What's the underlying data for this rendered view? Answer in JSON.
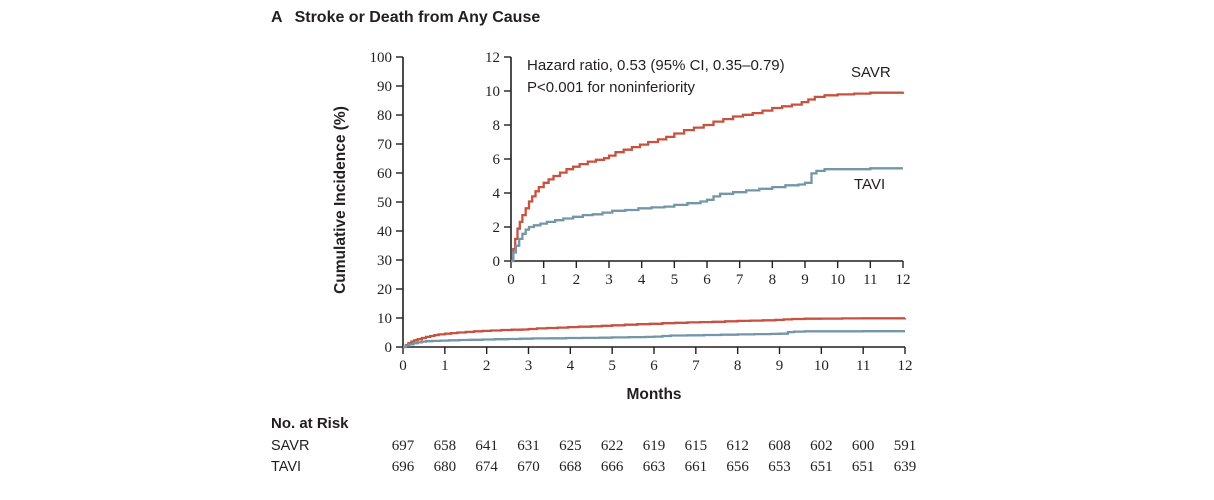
{
  "figure": {
    "panel_label": "A",
    "title": "Stroke or Death from Any Cause"
  },
  "chart_data": {
    "type": "line",
    "title": "Stroke or Death from Any Cause",
    "xlabel": "Months",
    "ylabel": "Cumulative Incidence (%)",
    "annotation": {
      "line1": "Hazard ratio, 0.53 (95% CI, 0.35–0.79)",
      "line2": "P<0.001 for noninferiority"
    },
    "main_axis": {
      "xlim": [
        0,
        12
      ],
      "ylim": [
        0,
        100
      ],
      "xticks": [
        0,
        1,
        2,
        3,
        4,
        5,
        6,
        7,
        8,
        9,
        10,
        11,
        12
      ],
      "yticks": [
        0,
        10,
        20,
        30,
        40,
        50,
        60,
        70,
        80,
        90,
        100
      ]
    },
    "inset_axis": {
      "xlim": [
        0,
        12
      ],
      "ylim": [
        0,
        12
      ],
      "xticks": [
        0,
        1,
        2,
        3,
        4,
        5,
        6,
        7,
        8,
        9,
        10,
        11,
        12
      ],
      "yticks": [
        0,
        2,
        4,
        6,
        8,
        10,
        12
      ]
    },
    "series": [
      {
        "name": "SAVR",
        "color": "#c85240",
        "points": [
          [
            0,
            0
          ],
          [
            0.07,
            0.7
          ],
          [
            0.13,
            1.3
          ],
          [
            0.2,
            1.9
          ],
          [
            0.27,
            2.3
          ],
          [
            0.35,
            2.7
          ],
          [
            0.45,
            3.1
          ],
          [
            0.55,
            3.5
          ],
          [
            0.65,
            3.8
          ],
          [
            0.75,
            4.1
          ],
          [
            0.85,
            4.35
          ],
          [
            1.0,
            4.6
          ],
          [
            1.15,
            4.8
          ],
          [
            1.3,
            5.0
          ],
          [
            1.5,
            5.2
          ],
          [
            1.7,
            5.4
          ],
          [
            1.9,
            5.55
          ],
          [
            2.1,
            5.7
          ],
          [
            2.35,
            5.85
          ],
          [
            2.6,
            5.95
          ],
          [
            2.85,
            6.05
          ],
          [
            3.0,
            6.2
          ],
          [
            3.2,
            6.4
          ],
          [
            3.45,
            6.55
          ],
          [
            3.7,
            6.7
          ],
          [
            3.95,
            6.85
          ],
          [
            4.2,
            7.0
          ],
          [
            4.5,
            7.15
          ],
          [
            4.75,
            7.3
          ],
          [
            5.0,
            7.5
          ],
          [
            5.3,
            7.7
          ],
          [
            5.6,
            7.85
          ],
          [
            5.9,
            8.0
          ],
          [
            6.2,
            8.2
          ],
          [
            6.5,
            8.35
          ],
          [
            6.8,
            8.5
          ],
          [
            7.1,
            8.6
          ],
          [
            7.4,
            8.7
          ],
          [
            7.7,
            8.85
          ],
          [
            8.0,
            9.0
          ],
          [
            8.3,
            9.1
          ],
          [
            8.6,
            9.2
          ],
          [
            8.9,
            9.35
          ],
          [
            9.1,
            9.5
          ],
          [
            9.3,
            9.65
          ],
          [
            9.6,
            9.75
          ],
          [
            10.0,
            9.8
          ],
          [
            10.5,
            9.85
          ],
          [
            11.0,
            9.9
          ],
          [
            11.5,
            9.9
          ],
          [
            12,
            9.95
          ]
        ]
      },
      {
        "name": "TAVI",
        "color": "#7496a9",
        "points": [
          [
            0,
            0
          ],
          [
            0.07,
            0.5
          ],
          [
            0.15,
            0.9
          ],
          [
            0.25,
            1.3
          ],
          [
            0.35,
            1.6
          ],
          [
            0.45,
            1.85
          ],
          [
            0.55,
            2.0
          ],
          [
            0.7,
            2.1
          ],
          [
            0.9,
            2.2
          ],
          [
            1.1,
            2.3
          ],
          [
            1.35,
            2.4
          ],
          [
            1.6,
            2.5
          ],
          [
            1.9,
            2.6
          ],
          [
            2.2,
            2.7
          ],
          [
            2.5,
            2.75
          ],
          [
            2.8,
            2.85
          ],
          [
            3.1,
            2.95
          ],
          [
            3.5,
            3.0
          ],
          [
            3.9,
            3.1
          ],
          [
            4.3,
            3.15
          ],
          [
            4.7,
            3.2
          ],
          [
            5.0,
            3.3
          ],
          [
            5.4,
            3.4
          ],
          [
            5.8,
            3.5
          ],
          [
            6.0,
            3.6
          ],
          [
            6.2,
            3.8
          ],
          [
            6.4,
            3.95
          ],
          [
            6.8,
            4.05
          ],
          [
            7.2,
            4.15
          ],
          [
            7.6,
            4.25
          ],
          [
            8.0,
            4.35
          ],
          [
            8.4,
            4.45
          ],
          [
            8.8,
            4.5
          ],
          [
            9.0,
            4.6
          ],
          [
            9.2,
            5.15
          ],
          [
            9.35,
            5.3
          ],
          [
            9.6,
            5.4
          ],
          [
            10.2,
            5.4
          ],
          [
            11.0,
            5.45
          ],
          [
            12,
            5.45
          ]
        ]
      }
    ],
    "no_at_risk": {
      "label": "No. at Risk",
      "rows": [
        {
          "name": "SAVR",
          "values": [
            697,
            658,
            641,
            631,
            625,
            622,
            619,
            615,
            612,
            608,
            602,
            600,
            591
          ]
        },
        {
          "name": "TAVI",
          "values": [
            696,
            680,
            674,
            670,
            668,
            666,
            663,
            661,
            656,
            653,
            651,
            651,
            639
          ]
        }
      ]
    }
  }
}
